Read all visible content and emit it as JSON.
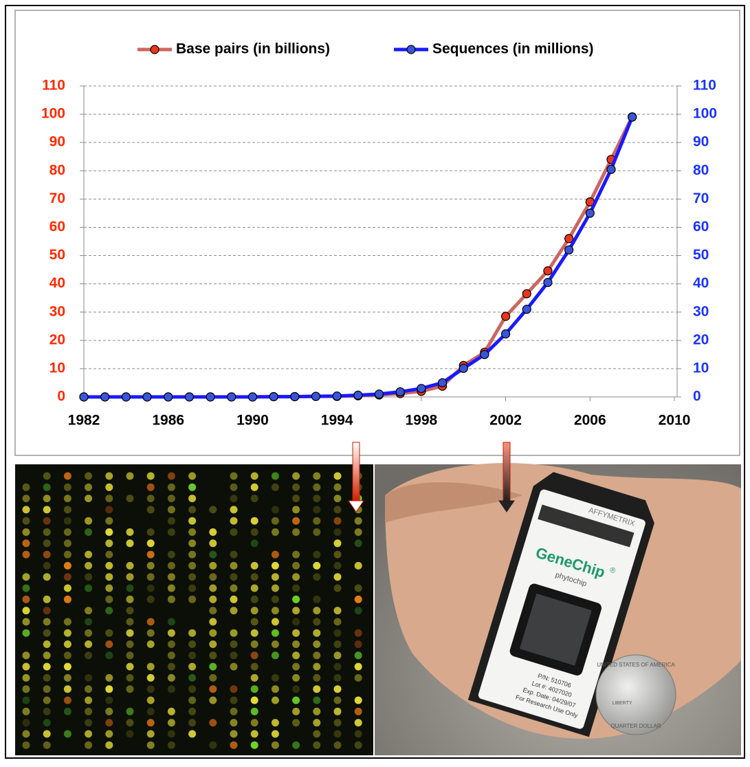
{
  "chart_data": {
    "type": "line",
    "x": [
      1982,
      1983,
      1984,
      1985,
      1986,
      1987,
      1988,
      1989,
      1990,
      1991,
      1992,
      1993,
      1994,
      1995,
      1996,
      1997,
      1998,
      1999,
      2000,
      2001,
      2002,
      2003,
      2004,
      2005,
      2006,
      2007,
      2008
    ],
    "xlim": [
      1982,
      2010
    ],
    "xticks": [
      1982,
      1986,
      1990,
      1994,
      1998,
      2002,
      2006,
      2010
    ],
    "ylim": [
      0,
      110
    ],
    "yticks": [
      0,
      10,
      20,
      30,
      40,
      50,
      60,
      70,
      80,
      90,
      100,
      110
    ],
    "y2lim": [
      0,
      110
    ],
    "y2ticks": [
      0,
      10,
      20,
      30,
      40,
      50,
      60,
      70,
      80,
      90,
      100,
      110
    ],
    "grid": true,
    "legend": "top",
    "left_axis_color": "#ff2a00",
    "right_axis_color": "#1a33ff",
    "series": [
      {
        "name": "Base pairs (in billions)",
        "color": "#cd6660",
        "marker_color": "#e8361c",
        "values": [
          0,
          0,
          0,
          0,
          0,
          0,
          0,
          0,
          0,
          0.1,
          0.1,
          0.2,
          0.2,
          0.4,
          0.7,
          1.2,
          2.0,
          3.8,
          11.1,
          15.8,
          28.5,
          36.5,
          44.6,
          56.0,
          69.0,
          84.0,
          99.1
        ]
      },
      {
        "name": "Sequences (in millions)",
        "color": "#1a1aff",
        "marker_color": "#3a55d8",
        "axis": "y2",
        "values": [
          0,
          0,
          0,
          0,
          0,
          0,
          0,
          0,
          0,
          0.1,
          0.1,
          0.2,
          0.3,
          0.6,
          1.0,
          1.8,
          3.0,
          5.0,
          10.1,
          15.0,
          22.3,
          31.0,
          40.5,
          52.0,
          65.0,
          80.5,
          99.0
        ]
      }
    ]
  },
  "photo": {
    "brand": "AFFYMETRIX",
    "product": "GeneChip",
    "registered": "®",
    "chip_name": "phytochip",
    "label_lines": [
      "P/N: 510706",
      "Lot #: 4027020",
      "Exp. Date: 04/29/07",
      "For Research Use Only"
    ],
    "coin": [
      "UNITED STATES OF AMERICA",
      "LIBERTY",
      "QUARTER DOLLAR"
    ]
  }
}
